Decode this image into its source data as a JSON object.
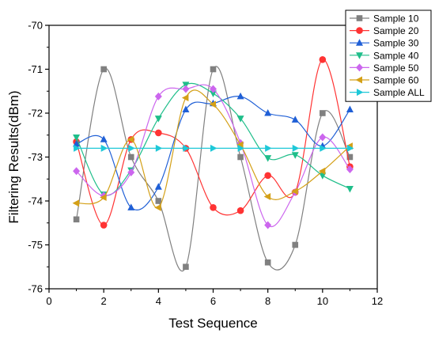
{
  "chart_data": {
    "type": "line",
    "xlabel": "Test Sequence",
    "ylabel": "Filtering Results(dBm)",
    "xlim": [
      0,
      12
    ],
    "ylim": [
      -76,
      -70
    ],
    "xticks": [
      0,
      2,
      4,
      6,
      8,
      10,
      12
    ],
    "yticks": [
      -70,
      -71,
      -72,
      -73,
      -74,
      -75,
      -76
    ],
    "grid": false,
    "legend_position": "top-right",
    "x": [
      1,
      2,
      3,
      4,
      5,
      6,
      7,
      8,
      9,
      10,
      11
    ],
    "series": [
      {
        "name": "Sample 10",
        "color": "#808080",
        "marker": "square",
        "values": [
          -74.42,
          -71.0,
          -73.0,
          -74.0,
          -75.5,
          -71.0,
          -73.0,
          -75.4,
          -75.0,
          -72.0,
          -73.0
        ]
      },
      {
        "name": "Sample 20",
        "color": "#ff3333",
        "marker": "circle",
        "values": [
          -72.65,
          -74.55,
          -72.6,
          -72.45,
          -72.8,
          -74.15,
          -74.22,
          -73.42,
          -73.8,
          -70.78,
          -73.22
        ]
      },
      {
        "name": "Sample 30",
        "color": "#1f5fd6",
        "marker": "triangle-up",
        "values": [
          -72.7,
          -72.6,
          -74.15,
          -73.68,
          -71.92,
          -71.78,
          -71.62,
          -72.0,
          -72.15,
          -72.75,
          -71.92
        ]
      },
      {
        "name": "Sample 40",
        "color": "#1fbe8a",
        "marker": "triangle-down",
        "values": [
          -72.55,
          -73.85,
          -73.3,
          -72.12,
          -71.35,
          -71.55,
          -72.12,
          -73.02,
          -72.95,
          -73.42,
          -73.72
        ]
      },
      {
        "name": "Sample 50",
        "color": "#cc66ee",
        "marker": "diamond",
        "values": [
          -73.32,
          -73.88,
          -73.35,
          -71.62,
          -71.45,
          -71.45,
          -72.68,
          -74.55,
          -73.8,
          -72.55,
          -73.28
        ]
      },
      {
        "name": "Sample 60",
        "color": "#d4a017",
        "marker": "triangle-left",
        "values": [
          -74.05,
          -73.92,
          -72.6,
          -74.15,
          -71.65,
          -71.8,
          -72.72,
          -73.9,
          -73.78,
          -73.32,
          -72.75
        ]
      },
      {
        "name": "Sample ALL",
        "color": "#1ec8d8",
        "marker": "triangle-right",
        "values": [
          -72.8,
          -72.8,
          -72.8,
          -72.8,
          -72.8,
          -72.8,
          -72.8,
          -72.8,
          -72.8,
          -72.8,
          -72.8
        ]
      }
    ]
  }
}
